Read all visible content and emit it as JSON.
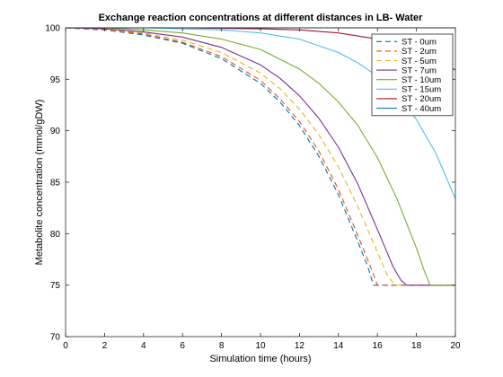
{
  "chart_data": {
    "type": "line",
    "title": "Exchange reaction concentrations at different distances in LB- Water",
    "xlabel": "Simulation time (hours)",
    "ylabel": "Metabolite concentration (mmol/gDW)",
    "xlim": [
      0,
      20
    ],
    "ylim": [
      70,
      100
    ],
    "xticks": [
      0,
      2,
      4,
      6,
      8,
      10,
      12,
      14,
      16,
      18,
      20
    ],
    "yticks": [
      70,
      75,
      80,
      85,
      90,
      95,
      100
    ],
    "grid": false,
    "legend_position": "top-right",
    "series": [
      {
        "name": "ST - 0um",
        "color": "#0072BD",
        "dash": "dashed",
        "x": [
          0,
          2,
          4,
          6,
          8,
          10,
          11,
          12,
          13,
          14,
          15,
          15.5,
          15.8,
          20
        ],
        "y": [
          100,
          99.8,
          99.3,
          98.5,
          97.0,
          94.6,
          92.8,
          90.5,
          87.5,
          83.8,
          79.2,
          76.8,
          75,
          75
        ]
      },
      {
        "name": "ST - 2um",
        "color": "#D95319",
        "dash": "dashed",
        "x": [
          0,
          2,
          4,
          6,
          8,
          10,
          11,
          12,
          13,
          14,
          15,
          15.6,
          16.0,
          20
        ],
        "y": [
          100,
          99.8,
          99.4,
          98.6,
          97.2,
          94.9,
          93.1,
          90.9,
          88.0,
          84.3,
          79.8,
          77.0,
          75,
          75
        ]
      },
      {
        "name": "ST - 5um",
        "color": "#EDB120",
        "dash": "dashed",
        "x": [
          0,
          2,
          4,
          6,
          8,
          10,
          11,
          12,
          13,
          14,
          15,
          16,
          16.5,
          16.9,
          20
        ],
        "y": [
          100,
          99.9,
          99.5,
          98.8,
          97.6,
          95.6,
          94.1,
          92.1,
          89.6,
          86.5,
          82.6,
          78.2,
          76.0,
          75,
          75
        ]
      },
      {
        "name": "ST - 7um",
        "color": "#7E2F8E",
        "dash": "solid",
        "x": [
          0,
          2,
          4,
          6,
          8,
          10,
          11,
          12,
          13,
          14,
          15,
          16,
          16.8,
          17.2,
          17.5,
          20
        ],
        "y": [
          100,
          99.9,
          99.6,
          99.1,
          98.1,
          96.4,
          95.1,
          93.4,
          91.2,
          88.4,
          84.8,
          80.4,
          76.8,
          75.5,
          75,
          75
        ]
      },
      {
        "name": "ST - 10um",
        "color": "#77AC30",
        "dash": "solid",
        "x": [
          0,
          2,
          4,
          6,
          8,
          10,
          12,
          13,
          14,
          15,
          16,
          17,
          18,
          18.4,
          18.7,
          20
        ],
        "y": [
          100,
          100,
          99.8,
          99.5,
          98.9,
          97.9,
          96.0,
          94.6,
          92.8,
          90.5,
          87.4,
          83.4,
          78.6,
          76.4,
          75,
          75
        ]
      },
      {
        "name": "ST - 15um",
        "color": "#4DBEEE",
        "dash": "solid",
        "x": [
          0,
          4,
          8,
          10,
          12,
          14,
          15,
          16,
          17,
          18,
          19,
          20
        ],
        "y": [
          100,
          100,
          99.8,
          99.5,
          98.9,
          97.6,
          96.6,
          95.3,
          93.5,
          91.1,
          87.8,
          83.4
        ]
      },
      {
        "name": "ST - 20um",
        "color": "#A2142F",
        "dash": "solid",
        "x": [
          0,
          6,
          10,
          12,
          14,
          16,
          17,
          18,
          19,
          20
        ],
        "y": [
          100,
          100,
          99.9,
          99.8,
          99.5,
          98.9,
          98.4,
          97.8,
          96.9,
          95.9
        ]
      },
      {
        "name": "ST - 40um",
        "color": "#0072BD",
        "dash": "solid",
        "x": [
          0,
          20
        ],
        "y": [
          100,
          100
        ]
      }
    ]
  }
}
